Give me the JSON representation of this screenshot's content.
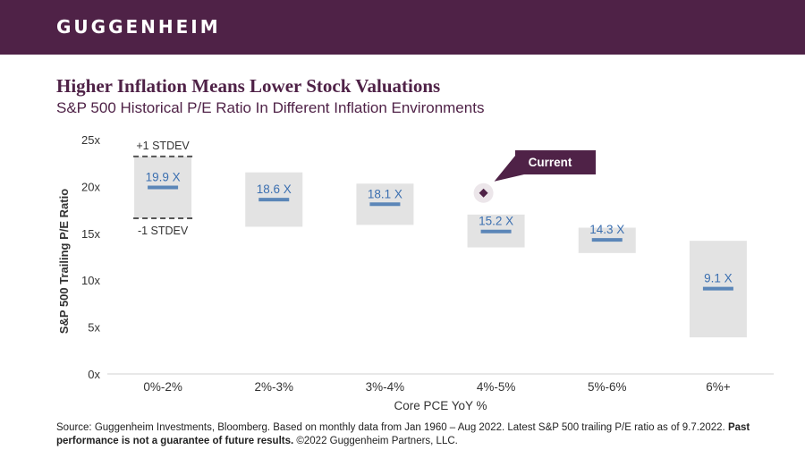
{
  "brand": "GUGGENHEIM",
  "title": "Higher Inflation Means Lower Stock Valuations",
  "subtitle": "S&P 500 Historical P/E Ratio In Different Inflation Environments",
  "source": {
    "text": "Source: Guggenheim Investments, Bloomberg. Based on monthly data from Jan 1960 – Aug 2022. Latest S&P 500 trailing P/E ratio as of 9.7.2022.",
    "bold": "Past performance is not a guarantee of future results.",
    "tail": "©2022 Guggenheim Partners, LLC."
  },
  "colors": {
    "brand": "#4f2247",
    "band": "#e3e3e3",
    "mean_line": "#5b86b8",
    "label": "#3b6fb0",
    "current_marker": "#4f2247"
  },
  "chart_data": {
    "type": "bar",
    "xlabel": "Core PCE YoY %",
    "ylabel": "S&P 500 Trailing P/E Ratio",
    "ylim": [
      0,
      25
    ],
    "yticks": [
      0,
      5,
      10,
      15,
      20,
      25
    ],
    "ytick_labels": [
      "0x",
      "5x",
      "10x",
      "15x",
      "20x",
      "25x"
    ],
    "categories": [
      "0%-2%",
      "2%-3%",
      "3%-4%",
      "4%-5%",
      "5%-6%",
      "6%+"
    ],
    "series": [
      {
        "role": "mean",
        "values": [
          19.9,
          18.6,
          18.1,
          15.2,
          14.3,
          9.1
        ]
      },
      {
        "role": "mean+1sd",
        "values": [
          23.2,
          21.5,
          20.3,
          17.0,
          15.6,
          14.2
        ]
      },
      {
        "role": "mean-1sd",
        "values": [
          16.6,
          15.7,
          15.9,
          13.5,
          12.9,
          3.9
        ]
      }
    ],
    "labels": [
      "19.9 X",
      "18.6 X",
      "18.1 X",
      "15.2 X",
      "14.3 X",
      "9.1 X"
    ],
    "annotations": {
      "plus_stdev": "+1 STDEV",
      "minus_stdev": "-1 STDEV",
      "current_label": "Current",
      "current_value": 19.3,
      "current_category": "4%-5%"
    },
    "grid": false
  }
}
